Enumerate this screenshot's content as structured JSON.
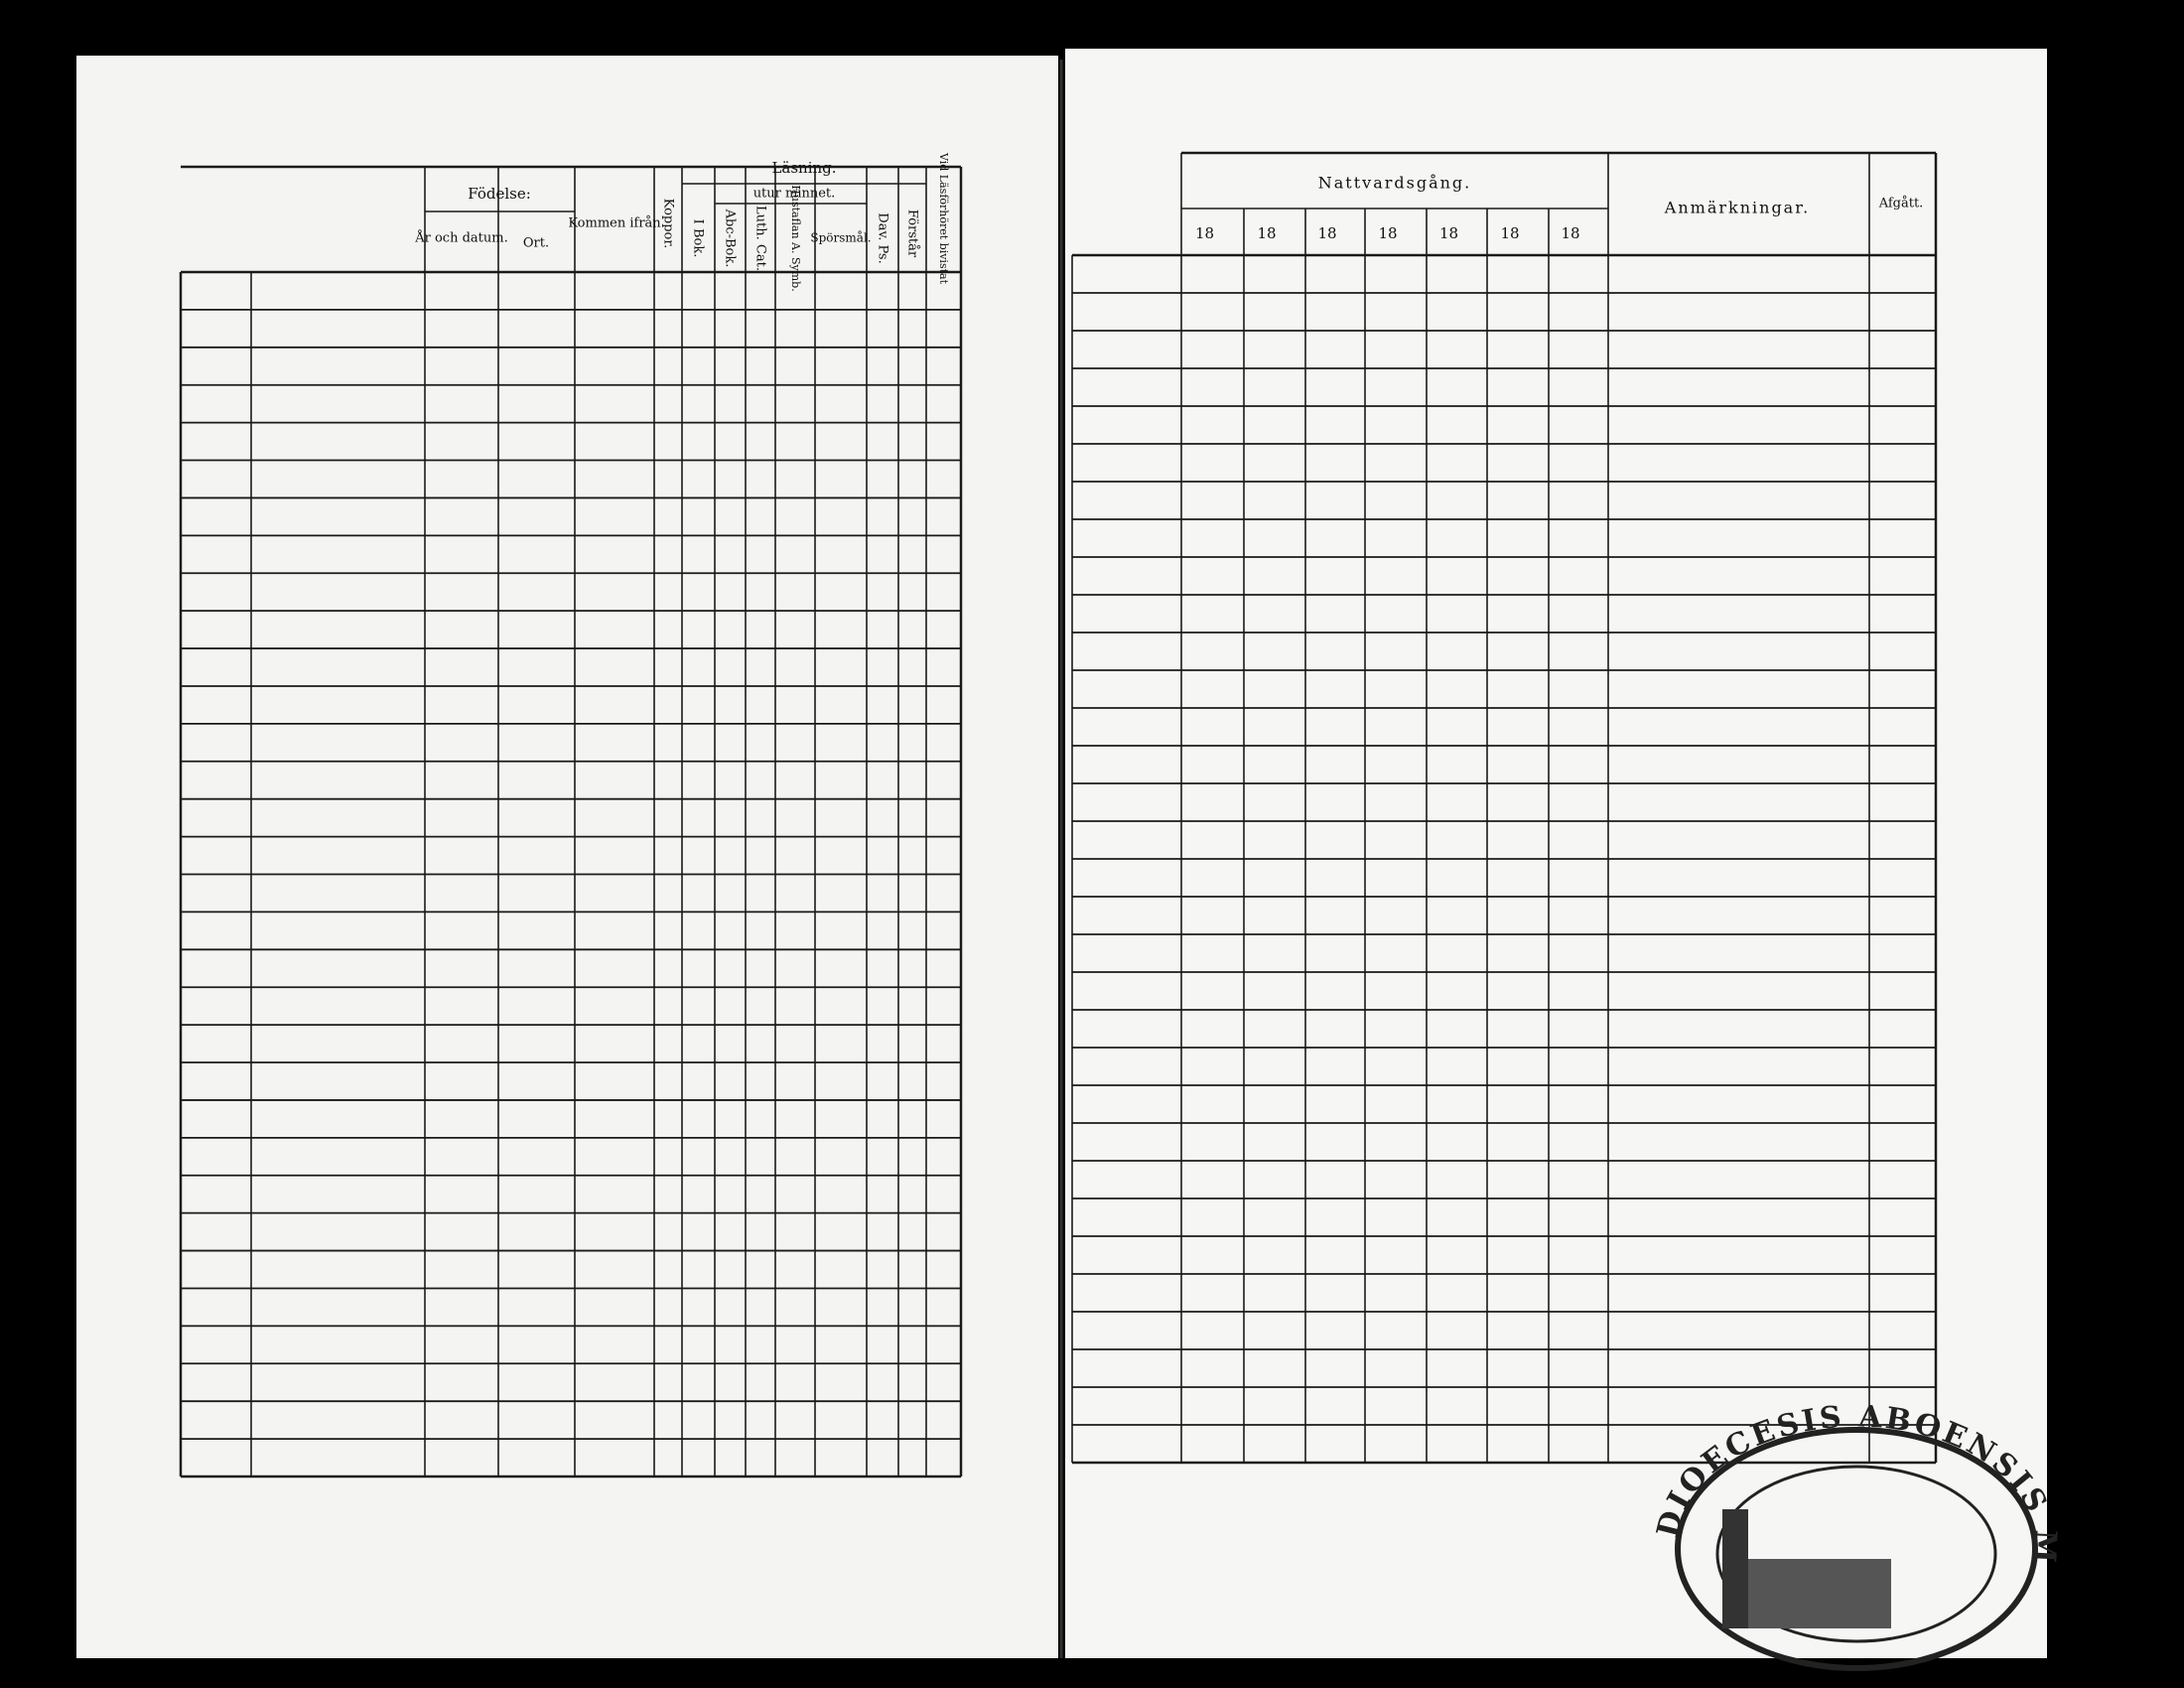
{
  "left_page": {
    "birth": "Födelse:",
    "birth_date": "År och datum.",
    "birth_place": "Ort.",
    "came_from": "Kommen ifrån",
    "smallpox": "Koppor.",
    "reading": "Läsning.",
    "by_heart": "utur minnet.",
    "book": "I Bok.",
    "abc": "Abc-Bok.",
    "catechism": "Luth. Cat.",
    "hustaflan": "Hustaflan A. Symb.",
    "questions": "Spörsmål.",
    "psalms": "Dav. Ps.",
    "understands": "Förstår",
    "attended": "Vid Läsförhöret bivistat"
  },
  "right_page": {
    "communion": "Nattvardsgång.",
    "years": [
      "18",
      "18",
      "18",
      "18",
      "18",
      "18",
      "18"
    ],
    "remarks": "Anmärkningar.",
    "departed": "Afgått."
  },
  "stamp": "DIOECESIS ABOENSIS MAGN. PRINC. FINL."
}
